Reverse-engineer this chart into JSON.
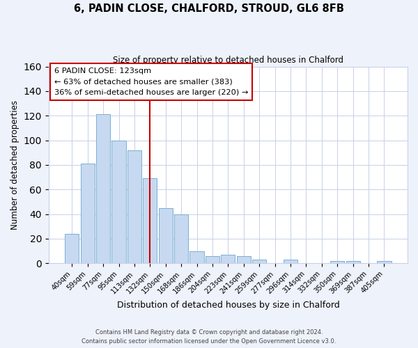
{
  "title": "6, PADIN CLOSE, CHALFORD, STROUD, GL6 8FB",
  "subtitle": "Size of property relative to detached houses in Chalford",
  "xlabel": "Distribution of detached houses by size in Chalford",
  "ylabel": "Number of detached properties",
  "bar_labels": [
    "40sqm",
    "59sqm",
    "77sqm",
    "95sqm",
    "113sqm",
    "132sqm",
    "150sqm",
    "168sqm",
    "186sqm",
    "204sqm",
    "223sqm",
    "241sqm",
    "259sqm",
    "277sqm",
    "296sqm",
    "314sqm",
    "332sqm",
    "350sqm",
    "369sqm",
    "387sqm",
    "405sqm"
  ],
  "bar_values": [
    24,
    81,
    121,
    100,
    92,
    69,
    45,
    40,
    10,
    6,
    7,
    6,
    3,
    0,
    3,
    0,
    0,
    2,
    2,
    0,
    2
  ],
  "bar_color": "#c6d9f0",
  "bar_edge_color": "#7bafd4",
  "vline_x": 5,
  "vline_color": "#cc0000",
  "annotation_line1": "6 PADIN CLOSE: 123sqm",
  "annotation_line2": "← 63% of detached houses are smaller (383)",
  "annotation_line3": "36% of semi-detached houses are larger (220) →",
  "ylim": [
    0,
    160
  ],
  "yticks": [
    0,
    20,
    40,
    60,
    80,
    100,
    120,
    140,
    160
  ],
  "footer_line1": "Contains HM Land Registry data © Crown copyright and database right 2024.",
  "footer_line2": "Contains public sector information licensed under the Open Government Licence v3.0.",
  "bg_color": "#eef2fb",
  "plot_bg_color": "#ffffff",
  "grid_color": "#c8d0e8"
}
